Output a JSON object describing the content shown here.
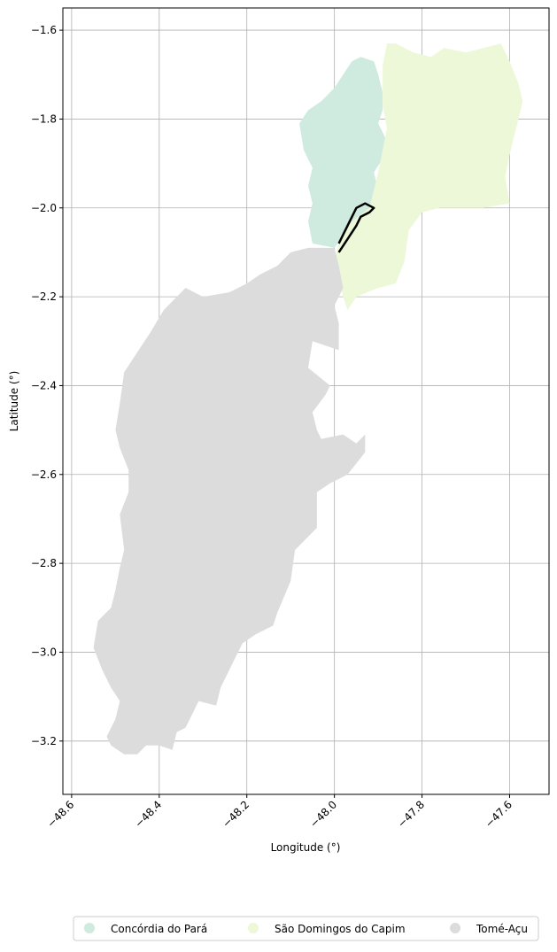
{
  "chart_data": {
    "type": "map",
    "xlabel": "Longitude (°)",
    "ylabel": "Latitude (°)",
    "xlim": [
      -48.62,
      -47.51
    ],
    "ylim": [
      -3.32,
      -1.55
    ],
    "xticks": [
      {
        "value": -48.6,
        "label": "−48.6"
      },
      {
        "value": -48.4,
        "label": "−48.4"
      },
      {
        "value": -48.2,
        "label": "−48.2"
      },
      {
        "value": -48.0,
        "label": "−48.0"
      },
      {
        "value": -47.8,
        "label": "−47.8"
      },
      {
        "value": -47.6,
        "label": "−47.6"
      }
    ],
    "yticks": [
      {
        "value": -1.6,
        "label": "−1.6"
      },
      {
        "value": -1.8,
        "label": "−1.8"
      },
      {
        "value": -2.0,
        "label": "−2.0"
      },
      {
        "value": -2.2,
        "label": "−2.2"
      },
      {
        "value": -2.4,
        "label": "−2.4"
      },
      {
        "value": -2.6,
        "label": "−2.6"
      },
      {
        "value": -2.8,
        "label": "−2.8"
      },
      {
        "value": -3.0,
        "label": "−3.0"
      },
      {
        "value": -3.2,
        "label": "−3.2"
      }
    ],
    "grid": true,
    "legend_position": "bottom-center",
    "regions": [
      {
        "name": "Concórdia do Pará",
        "color": "#cfeadf",
        "boundary": [
          [
            -47.91,
            -1.67
          ],
          [
            -47.9,
            -1.7
          ],
          [
            -47.89,
            -1.74
          ],
          [
            -47.89,
            -1.78
          ],
          [
            -47.9,
            -1.81
          ],
          [
            -47.88,
            -1.85
          ],
          [
            -47.89,
            -1.89
          ],
          [
            -47.91,
            -1.92
          ],
          [
            -47.9,
            -1.96
          ],
          [
            -47.92,
            -2.0
          ],
          [
            -47.97,
            -2.05
          ],
          [
            -48.0,
            -2.09
          ],
          [
            -48.05,
            -2.08
          ],
          [
            -48.06,
            -2.03
          ],
          [
            -48.05,
            -1.99
          ],
          [
            -48.06,
            -1.95
          ],
          [
            -48.05,
            -1.91
          ],
          [
            -48.07,
            -1.87
          ],
          [
            -48.08,
            -1.81
          ],
          [
            -48.06,
            -1.78
          ],
          [
            -48.03,
            -1.76
          ],
          [
            -48.0,
            -1.73
          ],
          [
            -47.98,
            -1.7
          ],
          [
            -47.96,
            -1.67
          ],
          [
            -47.94,
            -1.66
          ]
        ]
      },
      {
        "name": "São Domingos do Capim",
        "color": "#edf8d9",
        "boundary": [
          [
            -47.88,
            -1.63
          ],
          [
            -47.86,
            -1.63
          ],
          [
            -47.82,
            -1.65
          ],
          [
            -47.78,
            -1.66
          ],
          [
            -47.75,
            -1.64
          ],
          [
            -47.7,
            -1.65
          ],
          [
            -47.66,
            -1.64
          ],
          [
            -47.62,
            -1.63
          ],
          [
            -47.6,
            -1.67
          ],
          [
            -47.58,
            -1.72
          ],
          [
            -47.57,
            -1.76
          ],
          [
            -47.58,
            -1.8
          ],
          [
            -47.59,
            -1.84
          ],
          [
            -47.6,
            -1.88
          ],
          [
            -47.61,
            -1.93
          ],
          [
            -47.6,
            -1.99
          ],
          [
            -47.66,
            -2.0
          ],
          [
            -47.72,
            -2.0
          ],
          [
            -47.76,
            -2.0
          ],
          [
            -47.8,
            -2.01
          ],
          [
            -47.83,
            -2.05
          ],
          [
            -47.84,
            -2.12
          ],
          [
            -47.86,
            -2.17
          ],
          [
            -47.9,
            -2.18
          ],
          [
            -47.95,
            -2.2
          ],
          [
            -47.97,
            -2.23
          ],
          [
            -47.98,
            -2.2
          ],
          [
            -47.99,
            -2.16
          ],
          [
            -48.0,
            -2.12
          ],
          [
            -47.99,
            -2.08
          ],
          [
            -47.96,
            -2.03
          ],
          [
            -47.92,
            -2.0
          ],
          [
            -47.91,
            -1.96
          ],
          [
            -47.9,
            -1.92
          ],
          [
            -47.89,
            -1.87
          ],
          [
            -47.88,
            -1.82
          ],
          [
            -47.89,
            -1.77
          ],
          [
            -47.89,
            -1.72
          ],
          [
            -47.89,
            -1.68
          ]
        ]
      },
      {
        "name": "Tomé-Açu",
        "color": "#dcdcdc",
        "boundary": [
          [
            -48.0,
            -2.09
          ],
          [
            -47.99,
            -2.13
          ],
          [
            -47.98,
            -2.18
          ],
          [
            -48.0,
            -2.22
          ],
          [
            -47.99,
            -2.26
          ],
          [
            -47.99,
            -2.32
          ],
          [
            -48.05,
            -2.3
          ],
          [
            -48.06,
            -2.36
          ],
          [
            -48.01,
            -2.4
          ],
          [
            -48.02,
            -2.42
          ],
          [
            -48.05,
            -2.46
          ],
          [
            -48.04,
            -2.5
          ],
          [
            -48.03,
            -2.52
          ],
          [
            -47.98,
            -2.51
          ],
          [
            -47.95,
            -2.53
          ],
          [
            -47.93,
            -2.51
          ],
          [
            -47.93,
            -2.55
          ],
          [
            -47.97,
            -2.6
          ],
          [
            -48.01,
            -2.62
          ],
          [
            -48.04,
            -2.64
          ],
          [
            -48.04,
            -2.72
          ],
          [
            -48.09,
            -2.77
          ],
          [
            -48.1,
            -2.84
          ],
          [
            -48.13,
            -2.91
          ],
          [
            -48.14,
            -2.94
          ],
          [
            -48.18,
            -2.96
          ],
          [
            -48.21,
            -2.98
          ],
          [
            -48.24,
            -3.04
          ],
          [
            -48.26,
            -3.08
          ],
          [
            -48.27,
            -3.12
          ],
          [
            -48.31,
            -3.11
          ],
          [
            -48.32,
            -3.13
          ],
          [
            -48.34,
            -3.17
          ],
          [
            -48.36,
            -3.18
          ],
          [
            -48.37,
            -3.22
          ],
          [
            -48.4,
            -3.21
          ],
          [
            -48.43,
            -3.21
          ],
          [
            -48.45,
            -3.23
          ],
          [
            -48.48,
            -3.23
          ],
          [
            -48.51,
            -3.21
          ],
          [
            -48.52,
            -3.19
          ],
          [
            -48.5,
            -3.15
          ],
          [
            -48.49,
            -3.11
          ],
          [
            -48.51,
            -3.08
          ],
          [
            -48.53,
            -3.04
          ],
          [
            -48.55,
            -2.99
          ],
          [
            -48.54,
            -2.93
          ],
          [
            -48.51,
            -2.9
          ],
          [
            -48.5,
            -2.86
          ],
          [
            -48.49,
            -2.81
          ],
          [
            -48.48,
            -2.77
          ],
          [
            -48.49,
            -2.69
          ],
          [
            -48.47,
            -2.64
          ],
          [
            -48.47,
            -2.59
          ],
          [
            -48.49,
            -2.54
          ],
          [
            -48.5,
            -2.5
          ],
          [
            -48.49,
            -2.44
          ],
          [
            -48.48,
            -2.37
          ],
          [
            -48.46,
            -2.34
          ],
          [
            -48.42,
            -2.28
          ],
          [
            -48.39,
            -2.23
          ],
          [
            -48.36,
            -2.2
          ],
          [
            -48.34,
            -2.18
          ],
          [
            -48.3,
            -2.2
          ],
          [
            -48.24,
            -2.19
          ],
          [
            -48.2,
            -2.17
          ],
          [
            -48.17,
            -2.15
          ],
          [
            -48.13,
            -2.13
          ],
          [
            -48.1,
            -2.1
          ],
          [
            -48.06,
            -2.09
          ]
        ]
      }
    ],
    "highlight_line": [
      [
        -47.99,
        -2.1
      ],
      [
        -47.97,
        -2.07
      ],
      [
        -47.95,
        -2.04
      ],
      [
        -47.94,
        -2.02
      ],
      [
        -47.92,
        -2.01
      ],
      [
        -47.91,
        -2.0
      ],
      [
        -47.93,
        -1.99
      ],
      [
        -47.95,
        -2.0
      ],
      [
        -47.97,
        -2.04
      ],
      [
        -47.99,
        -2.08
      ]
    ]
  }
}
